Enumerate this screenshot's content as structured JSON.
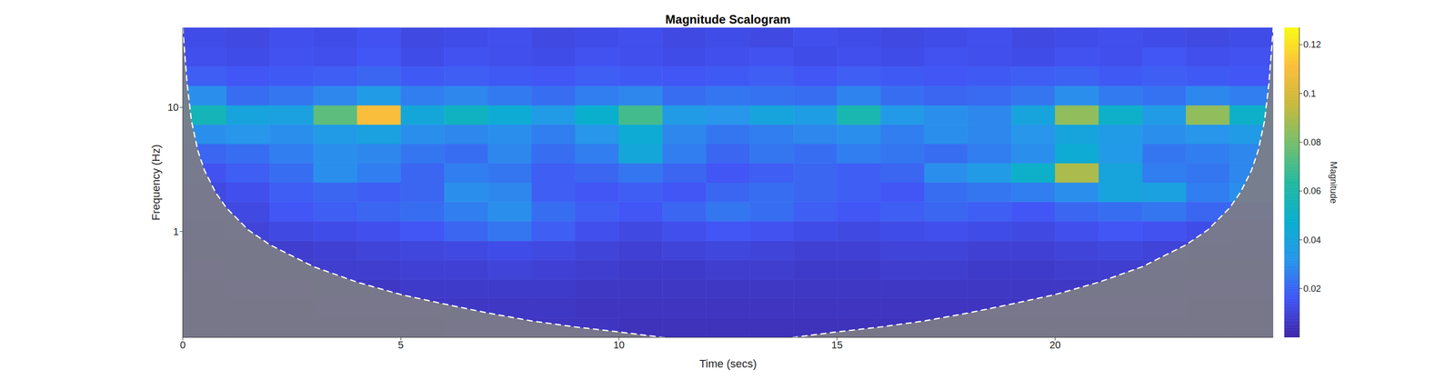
{
  "chart_data": {
    "type": "heatmap",
    "title": "Magnitude Scalogram",
    "x_label": "Time (secs)",
    "y_label": "Frequency (Hz)",
    "log": "y",
    "xlim": [
      0,
      25
    ],
    "ylim": [
      0.14,
      44
    ],
    "xticks": [
      0,
      5,
      10,
      15,
      20
    ],
    "yticks": [
      1,
      10
    ],
    "x_edges": [
      0,
      1,
      2,
      3,
      4,
      5,
      6,
      7,
      8,
      9,
      10,
      11,
      12,
      13,
      14,
      15,
      16,
      17,
      18,
      19,
      20,
      21,
      22,
      23,
      24,
      25
    ],
    "y_edges": [
      0.14,
      0.2,
      0.29,
      0.41,
      0.59,
      0.84,
      1.21,
      1.73,
      2.48,
      3.55,
      5.08,
      7.27,
      10.4,
      14.9,
      21.4,
      30.6,
      44
    ],
    "cells": [
      [
        0.003,
        0.003,
        0.004,
        0.004,
        0.004,
        0.004,
        0.005,
        0.005,
        0.005,
        0.005,
        0.004,
        0.004,
        0.004,
        0.004,
        0.004,
        0.004,
        0.004,
        0.004,
        0.004,
        0.004,
        0.004,
        0.004,
        0.004,
        0.003,
        0.003
      ],
      [
        0.004,
        0.004,
        0.004,
        0.005,
        0.005,
        0.005,
        0.006,
        0.006,
        0.006,
        0.005,
        0.005,
        0.005,
        0.005,
        0.005,
        0.005,
        0.005,
        0.005,
        0.005,
        0.005,
        0.005,
        0.005,
        0.005,
        0.005,
        0.004,
        0.004
      ],
      [
        0.004,
        0.005,
        0.005,
        0.006,
        0.006,
        0.007,
        0.007,
        0.007,
        0.007,
        0.006,
        0.006,
        0.006,
        0.006,
        0.006,
        0.006,
        0.006,
        0.006,
        0.006,
        0.006,
        0.006,
        0.006,
        0.006,
        0.006,
        0.005,
        0.005
      ],
      [
        0.005,
        0.006,
        0.007,
        0.008,
        0.008,
        0.009,
        0.009,
        0.01,
        0.009,
        0.008,
        0.007,
        0.007,
        0.008,
        0.008,
        0.007,
        0.007,
        0.008,
        0.008,
        0.007,
        0.007,
        0.008,
        0.008,
        0.008,
        0.007,
        0.006
      ],
      [
        0.006,
        0.007,
        0.008,
        0.009,
        0.01,
        0.011,
        0.012,
        0.013,
        0.012,
        0.01,
        0.009,
        0.01,
        0.011,
        0.01,
        0.009,
        0.009,
        0.01,
        0.01,
        0.009,
        0.009,
        0.01,
        0.011,
        0.01,
        0.009,
        0.008
      ],
      [
        0.008,
        0.01,
        0.012,
        0.013,
        0.014,
        0.016,
        0.02,
        0.024,
        0.018,
        0.014,
        0.012,
        0.014,
        0.016,
        0.015,
        0.013,
        0.012,
        0.013,
        0.014,
        0.013,
        0.012,
        0.014,
        0.016,
        0.015,
        0.013,
        0.012
      ],
      [
        0.01,
        0.012,
        0.016,
        0.018,
        0.02,
        0.022,
        0.026,
        0.03,
        0.022,
        0.018,
        0.016,
        0.02,
        0.024,
        0.022,
        0.018,
        0.016,
        0.018,
        0.02,
        0.018,
        0.016,
        0.02,
        0.022,
        0.024,
        0.02,
        0.018
      ],
      [
        0.012,
        0.014,
        0.018,
        0.02,
        0.018,
        0.02,
        0.03,
        0.028,
        0.018,
        0.016,
        0.018,
        0.016,
        0.02,
        0.022,
        0.02,
        0.018,
        0.016,
        0.022,
        0.024,
        0.026,
        0.03,
        0.04,
        0.038,
        0.026,
        0.03
      ],
      [
        0.015,
        0.018,
        0.022,
        0.03,
        0.026,
        0.02,
        0.026,
        0.024,
        0.018,
        0.02,
        0.024,
        0.02,
        0.016,
        0.018,
        0.02,
        0.018,
        0.02,
        0.03,
        0.035,
        0.05,
        0.09,
        0.04,
        0.026,
        0.024,
        0.028
      ],
      [
        0.02,
        0.022,
        0.026,
        0.03,
        0.028,
        0.024,
        0.022,
        0.028,
        0.022,
        0.026,
        0.042,
        0.026,
        0.02,
        0.024,
        0.022,
        0.026,
        0.024,
        0.022,
        0.026,
        0.03,
        0.045,
        0.034,
        0.024,
        0.026,
        0.028
      ],
      [
        0.03,
        0.032,
        0.03,
        0.035,
        0.038,
        0.03,
        0.028,
        0.03,
        0.026,
        0.032,
        0.045,
        0.028,
        0.024,
        0.026,
        0.028,
        0.03,
        0.026,
        0.03,
        0.028,
        0.032,
        0.04,
        0.035,
        0.03,
        0.032,
        0.035
      ],
      [
        0.055,
        0.04,
        0.038,
        0.075,
        0.11,
        0.042,
        0.052,
        0.045,
        0.035,
        0.048,
        0.07,
        0.035,
        0.032,
        0.04,
        0.036,
        0.058,
        0.034,
        0.03,
        0.028,
        0.04,
        0.085,
        0.05,
        0.035,
        0.085,
        0.05
      ],
      [
        0.03,
        0.022,
        0.024,
        0.028,
        0.035,
        0.026,
        0.028,
        0.025,
        0.022,
        0.026,
        0.028,
        0.022,
        0.024,
        0.023,
        0.022,
        0.027,
        0.022,
        0.02,
        0.021,
        0.024,
        0.03,
        0.025,
        0.023,
        0.028,
        0.026
      ],
      [
        0.018,
        0.016,
        0.017,
        0.018,
        0.02,
        0.017,
        0.018,
        0.017,
        0.016,
        0.018,
        0.017,
        0.016,
        0.017,
        0.018,
        0.016,
        0.018,
        0.017,
        0.016,
        0.017,
        0.018,
        0.019,
        0.017,
        0.018,
        0.017,
        0.016
      ],
      [
        0.014,
        0.013,
        0.015,
        0.014,
        0.016,
        0.013,
        0.015,
        0.014,
        0.013,
        0.015,
        0.014,
        0.013,
        0.014,
        0.015,
        0.013,
        0.014,
        0.013,
        0.015,
        0.014,
        0.013,
        0.015,
        0.014,
        0.016,
        0.014,
        0.015
      ],
      [
        0.013,
        0.012,
        0.014,
        0.013,
        0.015,
        0.012,
        0.013,
        0.014,
        0.012,
        0.013,
        0.014,
        0.012,
        0.013,
        0.012,
        0.014,
        0.013,
        0.012,
        0.013,
        0.014,
        0.012,
        0.013,
        0.014,
        0.013,
        0.012,
        0.013
      ]
    ],
    "color_label": "Magnitude",
    "color_range": [
      0,
      0.127
    ],
    "color_ticks": [
      0.02,
      0.04,
      0.06,
      0.08,
      0.1,
      0.12
    ],
    "coi": {
      "x": [
        0,
        0.1,
        0.2,
        0.35,
        0.5,
        0.75,
        1,
        1.5,
        2,
        3,
        4,
        5,
        6,
        7,
        8,
        9,
        10,
        11,
        12,
        12.5,
        13,
        14,
        15,
        16,
        17,
        18,
        19,
        20,
        21,
        22,
        23,
        23.5,
        24,
        24.25,
        24.5,
        24.65,
        24.8,
        24.9,
        25
      ],
      "values": [
        44,
        15.5,
        7.75,
        4.43,
        3.1,
        2.07,
        1.55,
        1.03,
        0.78,
        0.52,
        0.39,
        0.31,
        0.26,
        0.22,
        0.19,
        0.17,
        0.155,
        0.14,
        0.13,
        0.124,
        0.13,
        0.14,
        0.155,
        0.17,
        0.19,
        0.22,
        0.26,
        0.31,
        0.39,
        0.52,
        0.78,
        1.03,
        1.55,
        2.07,
        3.1,
        4.43,
        7.75,
        15.5,
        44
      ]
    }
  }
}
